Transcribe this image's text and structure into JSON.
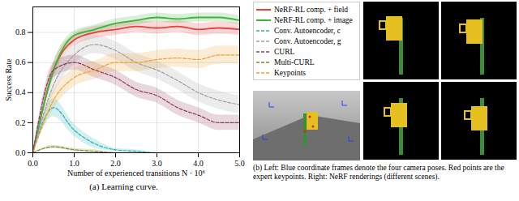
{
  "chart_data": {
    "type": "line",
    "title": "(a) Learning curve.",
    "x_label": "Number of experienced transitions N · 10⁶",
    "y_label": "Success Rate",
    "x": [
      0,
      0.5,
      1,
      1.5,
      2,
      2.5,
      3,
      3.5,
      4,
      4.5,
      5
    ],
    "xlim": [
      0,
      5
    ],
    "xticks": [
      0,
      1,
      2,
      3,
      4,
      5
    ],
    "ylim": [
      0,
      0.97
    ],
    "yticks": [
      0,
      0.2,
      0.4,
      0.6,
      0.8
    ],
    "grid": true,
    "series": [
      {
        "name": "NeRF-RL comp. + field",
        "color": "#e8413a",
        "line_style": "solid",
        "values": [
          0,
          0.55,
          0.75,
          0.8,
          0.82,
          0.84,
          0.83,
          0.84,
          0.82,
          0.83,
          0.82
        ],
        "error": [
          0,
          0.05,
          0.04,
          0.04,
          0.04,
          0.04,
          0.04,
          0.04,
          0.04,
          0.04,
          0.04
        ]
      },
      {
        "name": "NeRF-RL comp. + image",
        "color": "#3cb43c",
        "line_style": "solid",
        "values": [
          0,
          0.55,
          0.78,
          0.82,
          0.86,
          0.88,
          0.9,
          0.89,
          0.9,
          0.9,
          0.88
        ],
        "error": [
          0,
          0.05,
          0.03,
          0.03,
          0.03,
          0.03,
          0.03,
          0.03,
          0.03,
          0.03,
          0.03
        ]
      },
      {
        "name": "Conv. Autoencoder, c",
        "color": "#2ab0b0",
        "line_style": "dashed",
        "values": [
          0,
          0.3,
          0.15,
          0.06,
          0.02,
          0.01,
          0,
          0,
          0,
          0,
          0
        ],
        "error": [
          0,
          0.06,
          0.04,
          0.03,
          0.01,
          0.01,
          0,
          0,
          0,
          0,
          0
        ]
      },
      {
        "name": "Conv. Autoencoder, g",
        "color": "#a0a0a0",
        "line_style": "dashed",
        "values": [
          0,
          0.45,
          0.65,
          0.72,
          0.68,
          0.6,
          0.55,
          0.48,
          0.4,
          0.35,
          0.32
        ],
        "error": [
          0,
          0.06,
          0.06,
          0.06,
          0.06,
          0.06,
          0.06,
          0.06,
          0.06,
          0.06,
          0.06
        ]
      },
      {
        "name": "CURL",
        "color": "#8c3a5a",
        "line_style": "dashed",
        "values": [
          0,
          0.55,
          0.6,
          0.55,
          0.5,
          0.42,
          0.38,
          0.3,
          0.25,
          0.2,
          0.2
        ],
        "error": [
          0,
          0.05,
          0.05,
          0.05,
          0.05,
          0.05,
          0.05,
          0.05,
          0.05,
          0.05,
          0.05
        ]
      },
      {
        "name": "Multi-CURL",
        "color": "#7d8c2a",
        "line_style": "dashed",
        "values": [
          0,
          0.04,
          0.02,
          0.01,
          0,
          0,
          0,
          0,
          0,
          0,
          0
        ],
        "error": [
          0,
          0.01,
          0.01,
          0.01,
          0,
          0,
          0,
          0,
          0,
          0,
          0
        ]
      },
      {
        "name": "Keypoints",
        "color": "#f0a030",
        "line_style": "dashed",
        "values": [
          0,
          0.35,
          0.5,
          0.55,
          0.6,
          0.6,
          0.62,
          0.63,
          0.62,
          0.65,
          0.65
        ],
        "error": [
          0,
          0.06,
          0.06,
          0.06,
          0.06,
          0.06,
          0.06,
          0.06,
          0.06,
          0.06,
          0.06
        ]
      }
    ]
  },
  "panel_b": {
    "caption": "(b) Left: Blue coordinate frames denote the four camera poses. Red points are the expert keypoints. Right: NeRF renderings (different scenes)."
  }
}
